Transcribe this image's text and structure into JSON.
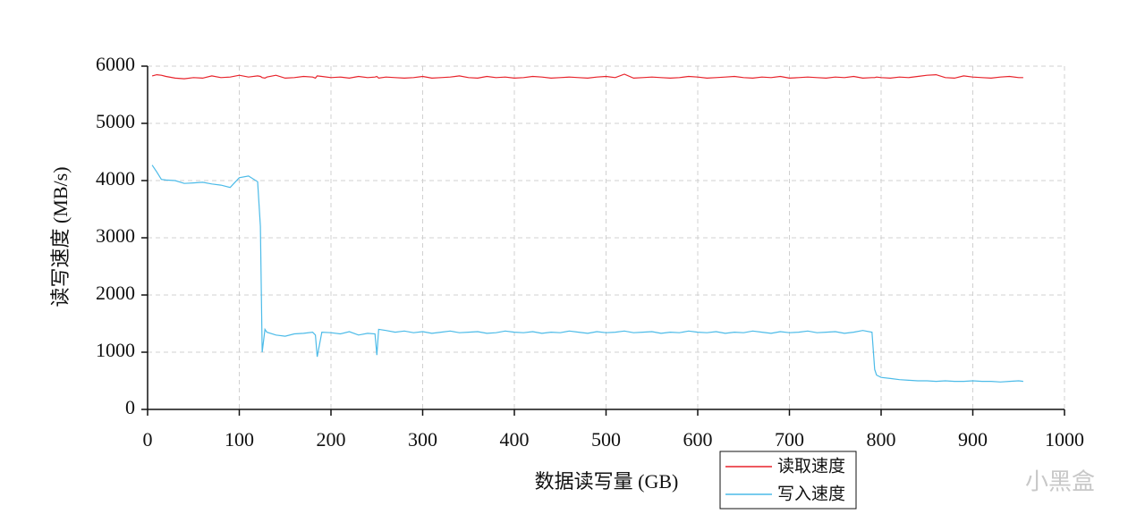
{
  "chart_data": {
    "type": "line",
    "x_label": "数据读写量 (GB)",
    "y_label": "读写速度 (MB/s)",
    "x": [
      5,
      10,
      15,
      20,
      30,
      40,
      50,
      60,
      70,
      80,
      90,
      100,
      110,
      120,
      123,
      125,
      128,
      130,
      140,
      150,
      160,
      170,
      180,
      183,
      185,
      190,
      200,
      210,
      220,
      230,
      240,
      248,
      250,
      252,
      260,
      270,
      280,
      290,
      300,
      310,
      320,
      330,
      340,
      350,
      360,
      370,
      380,
      390,
      400,
      410,
      420,
      430,
      440,
      450,
      460,
      470,
      480,
      490,
      500,
      510,
      520,
      530,
      540,
      550,
      560,
      570,
      580,
      590,
      600,
      610,
      620,
      630,
      640,
      650,
      660,
      670,
      680,
      690,
      700,
      710,
      720,
      730,
      740,
      750,
      760,
      770,
      780,
      790,
      793,
      795,
      800,
      810,
      820,
      830,
      840,
      850,
      860,
      870,
      880,
      890,
      900,
      910,
      920,
      930,
      940,
      950,
      955
    ],
    "series": [
      {
        "name": "读取速度",
        "color": "#e8232b",
        "values": [
          5830,
          5850,
          5840,
          5820,
          5790,
          5780,
          5800,
          5790,
          5830,
          5800,
          5810,
          5840,
          5810,
          5830,
          5820,
          5800,
          5790,
          5810,
          5840,
          5790,
          5800,
          5820,
          5810,
          5790,
          5830,
          5820,
          5800,
          5810,
          5790,
          5820,
          5800,
          5810,
          5820,
          5790,
          5810,
          5800,
          5790,
          5800,
          5820,
          5790,
          5800,
          5810,
          5830,
          5800,
          5790,
          5820,
          5800,
          5810,
          5790,
          5800,
          5820,
          5810,
          5790,
          5800,
          5810,
          5800,
          5790,
          5810,
          5820,
          5800,
          5860,
          5790,
          5800,
          5810,
          5800,
          5790,
          5800,
          5820,
          5810,
          5790,
          5800,
          5810,
          5820,
          5800,
          5790,
          5810,
          5800,
          5820,
          5790,
          5800,
          5810,
          5800,
          5790,
          5810,
          5800,
          5820,
          5790,
          5800,
          5800,
          5810,
          5800,
          5790,
          5810,
          5800,
          5820,
          5840,
          5850,
          5800,
          5790,
          5830,
          5810,
          5800,
          5790,
          5810,
          5820,
          5800,
          5800
        ]
      },
      {
        "name": "写入速度",
        "color": "#4cbbe8",
        "values": [
          4270,
          4150,
          4020,
          4010,
          4000,
          3950,
          3960,
          3970,
          3940,
          3920,
          3880,
          4050,
          4080,
          3980,
          3200,
          1000,
          1400,
          1350,
          1300,
          1280,
          1320,
          1330,
          1350,
          1300,
          920,
          1350,
          1340,
          1320,
          1360,
          1300,
          1330,
          1320,
          950,
          1400,
          1380,
          1350,
          1370,
          1340,
          1360,
          1330,
          1350,
          1370,
          1340,
          1350,
          1360,
          1330,
          1340,
          1370,
          1350,
          1340,
          1360,
          1330,
          1350,
          1340,
          1370,
          1350,
          1330,
          1360,
          1340,
          1350,
          1370,
          1340,
          1350,
          1360,
          1330,
          1350,
          1340,
          1370,
          1350,
          1340,
          1360,
          1330,
          1350,
          1340,
          1370,
          1350,
          1330,
          1360,
          1340,
          1350,
          1370,
          1340,
          1350,
          1360,
          1330,
          1350,
          1380,
          1350,
          700,
          600,
          560,
          540,
          520,
          510,
          500,
          500,
          490,
          500,
          490,
          490,
          500,
          490,
          490,
          480,
          490,
          500,
          490
        ]
      }
    ],
    "xlim": [
      0,
      1000
    ],
    "xticks": [
      0,
      100,
      200,
      300,
      400,
      500,
      600,
      700,
      800,
      900,
      1000
    ],
    "ylim": [
      0,
      6000
    ],
    "yticks": [
      0,
      1000,
      2000,
      3000,
      4000,
      5000,
      6000
    ],
    "grid": true,
    "legend": "bottom"
  },
  "watermark": "小黑盒"
}
